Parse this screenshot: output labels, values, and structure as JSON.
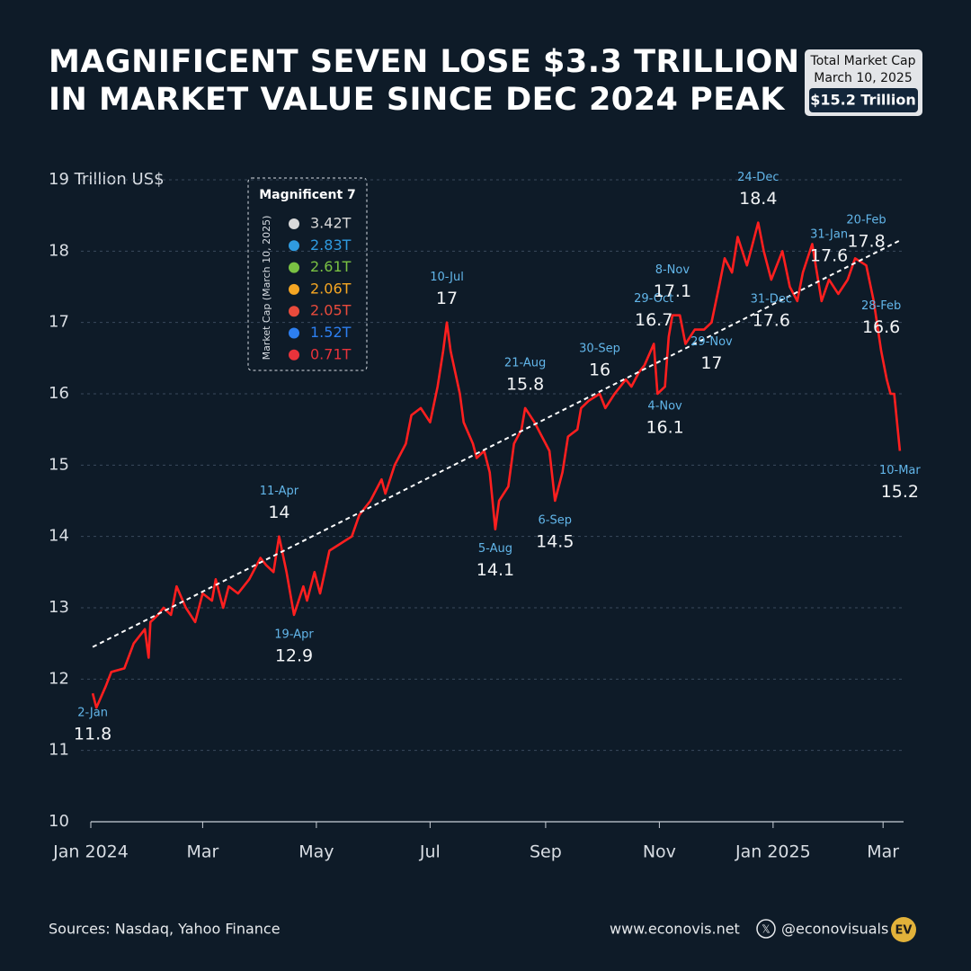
{
  "chart_data": {
    "type": "line",
    "title": [
      "MAGNIFICENT SEVEN LOSE $3.3 TRILLION",
      "IN MARKET VALUE SINCE DEC 2024 PEAK"
    ],
    "info_box": {
      "heading": "Total Market Cap",
      "date": "March 10, 2025",
      "value": "$15.2 Trillion"
    },
    "legend": {
      "title": "Magnificent 7",
      "subtitle": "Market Cap (March 10, 2025)",
      "items": [
        {
          "label": "3.42T",
          "color": "#d9d9d9"
        },
        {
          "label": "2.83T",
          "color": "#2f9be0"
        },
        {
          "label": "2.61T",
          "color": "#7ac143"
        },
        {
          "label": "2.06T",
          "color": "#f5a623"
        },
        {
          "label": "2.05T",
          "color": "#e94b3c"
        },
        {
          "label": "1.52T",
          "color": "#2d7ff0"
        },
        {
          "label": "0.71T",
          "color": "#e8333b"
        }
      ]
    },
    "xlim": [
      "2024-01-01",
      "2025-03-12"
    ],
    "xticks": [
      {
        "value": "2024-01-01",
        "label": "Jan 2024"
      },
      {
        "value": "2024-03-01",
        "label": "Mar"
      },
      {
        "value": "2024-05-01",
        "label": "May"
      },
      {
        "value": "2024-07-01",
        "label": "Jul"
      },
      {
        "value": "2024-09-01",
        "label": "Sep"
      },
      {
        "value": "2024-11-01",
        "label": "Nov"
      },
      {
        "value": "2025-01-01",
        "label": "Jan 2025"
      },
      {
        "value": "2025-03-01",
        "label": "Mar"
      }
    ],
    "ylim": [
      10,
      19
    ],
    "yticks": [
      10,
      11,
      12,
      13,
      14,
      15,
      16,
      17,
      18,
      {
        "value": 19,
        "label": "19 Trillion US$"
      }
    ],
    "grid": true,
    "series": [
      {
        "color": "#ff1f1f",
        "x": [
          "2024-01-02",
          "2024-01-04",
          "2024-01-09",
          "2024-01-12",
          "2024-01-19",
          "2024-01-24",
          "2024-01-30",
          "2024-02-01",
          "2024-02-02",
          "2024-02-06",
          "2024-02-09",
          "2024-02-13",
          "2024-02-16",
          "2024-02-21",
          "2024-02-26",
          "2024-03-01",
          "2024-03-06",
          "2024-03-08",
          "2024-03-12",
          "2024-03-15",
          "2024-03-20",
          "2024-03-26",
          "2024-04-01",
          "2024-04-04",
          "2024-04-08",
          "2024-04-11",
          "2024-04-15",
          "2024-04-19",
          "2024-04-24",
          "2024-04-26",
          "2024-04-30",
          "2024-05-03",
          "2024-05-08",
          "2024-05-14",
          "2024-05-20",
          "2024-05-24",
          "2024-05-30",
          "2024-06-05",
          "2024-06-07",
          "2024-06-12",
          "2024-06-18",
          "2024-06-21",
          "2024-06-26",
          "2024-07-01",
          "2024-07-05",
          "2024-07-08",
          "2024-07-10",
          "2024-07-12",
          "2024-07-17",
          "2024-07-19",
          "2024-07-24",
          "2024-07-26",
          "2024-07-30",
          "2024-08-02",
          "2024-08-05",
          "2024-08-07",
          "2024-08-12",
          "2024-08-15",
          "2024-08-19",
          "2024-08-21",
          "2024-08-26",
          "2024-08-30",
          "2024-09-03",
          "2024-09-06",
          "2024-09-10",
          "2024-09-13",
          "2024-09-18",
          "2024-09-20",
          "2024-09-24",
          "2024-09-30",
          "2024-10-03",
          "2024-10-08",
          "2024-10-14",
          "2024-10-17",
          "2024-10-21",
          "2024-10-24",
          "2024-10-29",
          "2024-10-31",
          "2024-11-04",
          "2024-11-06",
          "2024-11-08",
          "2024-11-12",
          "2024-11-15",
          "2024-11-20",
          "2024-11-25",
          "2024-11-29",
          "2024-12-03",
          "2024-12-06",
          "2024-12-10",
          "2024-12-13",
          "2024-12-18",
          "2024-12-20",
          "2024-12-24",
          "2024-12-27",
          "2024-12-31",
          "2025-01-06",
          "2025-01-10",
          "2025-01-14",
          "2025-01-17",
          "2025-01-22",
          "2025-01-27",
          "2025-01-31",
          "2025-02-05",
          "2025-02-10",
          "2025-02-14",
          "2025-02-20",
          "2025-02-24",
          "2025-02-28",
          "2025-03-03",
          "2025-03-05",
          "2025-03-07",
          "2025-03-10"
        ],
        "values": [
          11.8,
          11.6,
          11.9,
          12.1,
          12.15,
          12.5,
          12.7,
          12.3,
          12.8,
          12.9,
          13.0,
          12.9,
          13.3,
          13.0,
          12.8,
          13.2,
          13.1,
          13.4,
          13.0,
          13.3,
          13.2,
          13.4,
          13.7,
          13.6,
          13.5,
          14.0,
          13.5,
          12.9,
          13.3,
          13.1,
          13.5,
          13.2,
          13.8,
          13.9,
          14.0,
          14.3,
          14.5,
          14.8,
          14.6,
          15.0,
          15.3,
          15.7,
          15.8,
          15.6,
          16.1,
          16.6,
          17.0,
          16.6,
          16.0,
          15.6,
          15.3,
          15.1,
          15.2,
          14.9,
          14.1,
          14.5,
          14.7,
          15.3,
          15.5,
          15.8,
          15.6,
          15.4,
          15.2,
          14.5,
          14.9,
          15.4,
          15.5,
          15.8,
          15.9,
          16.0,
          15.8,
          16.0,
          16.2,
          16.1,
          16.3,
          16.4,
          16.7,
          16.0,
          16.1,
          16.8,
          17.1,
          17.1,
          16.7,
          16.9,
          16.9,
          17.0,
          17.5,
          17.9,
          17.7,
          18.2,
          17.8,
          18.0,
          18.4,
          18.0,
          17.6,
          18.0,
          17.5,
          17.3,
          17.7,
          18.1,
          17.3,
          17.6,
          17.4,
          17.6,
          17.9,
          17.8,
          17.3,
          16.6,
          16.2,
          16.0,
          16.0,
          15.2
        ],
        "annotation_dates": [
          "2-Jan",
          null,
          null,
          null,
          null,
          null,
          null,
          null,
          null,
          null,
          null,
          null,
          null,
          null,
          null,
          null,
          null,
          null,
          null,
          null,
          null,
          null,
          null,
          null,
          null,
          "11-Apr",
          null,
          "19-Apr",
          null,
          null,
          null,
          null,
          null,
          null,
          null,
          null,
          null,
          null,
          null,
          null,
          null,
          null,
          null,
          null,
          null,
          null,
          "10-Jul",
          null,
          null,
          null,
          null,
          null,
          null,
          null,
          "5-Aug",
          null,
          null,
          null,
          null,
          "21-Aug",
          null,
          null,
          null,
          "6-Sep",
          null,
          null,
          null,
          null,
          null,
          "30-Sep",
          null,
          null,
          null,
          null,
          null,
          null,
          "29-Oct",
          null,
          "4-Nov",
          null,
          "8-Nov",
          null,
          null,
          null,
          null,
          "29-Nov",
          null,
          null,
          null,
          null,
          null,
          null,
          "24-Dec",
          null,
          "31-Dec",
          null,
          null,
          null,
          null,
          null,
          null,
          "31-Jan",
          null,
          null,
          null,
          "20-Feb",
          null,
          "28-Feb",
          null,
          null,
          null,
          "10-Mar"
        ]
      }
    ],
    "trendline": {
      "color": "#ffffff",
      "x": [
        "2024-01-02",
        "2025-03-10"
      ],
      "values": [
        12.45,
        18.15
      ]
    },
    "footer": {
      "source": "Sources: Nasdaq, Yahoo Finance",
      "website": "www.econovis.net",
      "handle": "@econovisuals",
      "logo": "EV"
    }
  }
}
